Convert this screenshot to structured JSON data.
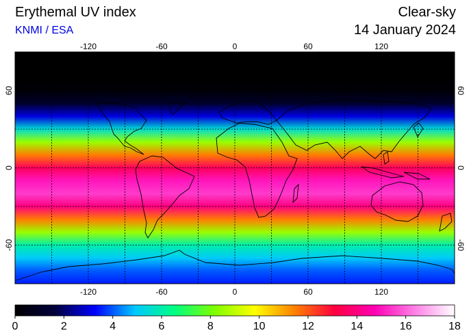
{
  "header": {
    "title": "Erythemal UV index",
    "credit": "KNMI / ESA",
    "conditions": "Clear-sky",
    "date": "14 January 2024"
  },
  "map": {
    "projection": "equirectangular",
    "lon_range": [
      -180,
      180
    ],
    "lat_range": [
      -90,
      90
    ],
    "lon_ticks": [
      -120,
      -60,
      0,
      60,
      120
    ],
    "lon_tick_labels": [
      "-120",
      "-60",
      "0",
      "60",
      "120"
    ],
    "lat_ticks": [
      60,
      0,
      -60
    ],
    "lat_tick_labels": [
      "60",
      "0",
      "-60"
    ],
    "gridline_style": "dotted",
    "grid_lon_step": 30,
    "grid_lat_step": 30
  },
  "colorbar": {
    "min": 0,
    "max": 18,
    "ticks": [
      0,
      2,
      4,
      6,
      8,
      10,
      12,
      14,
      16,
      18
    ],
    "tick_labels": [
      "0",
      "2",
      "4",
      "6",
      "8",
      "10",
      "12",
      "14",
      "16",
      "18"
    ],
    "colors": [
      "#000000",
      "#00003c",
      "#0000ff",
      "#00c8ff",
      "#00ff80",
      "#80ff00",
      "#ffff00",
      "#ff8000",
      "#ff0040",
      "#ff00b4",
      "#ff80e6",
      "#ffffff"
    ]
  },
  "uv_field": {
    "latitudes": [
      90,
      80,
      70,
      60,
      50,
      40,
      30,
      20,
      10,
      0,
      -10,
      -20,
      -30,
      -40,
      -50,
      -60,
      -70,
      -80,
      -90
    ],
    "uv_index": [
      0,
      0,
      0,
      0.2,
      1.2,
      3,
      5.5,
      8.5,
      11.5,
      13.5,
      15,
      15.5,
      14,
      11.5,
      8.5,
      6,
      5,
      4,
      3.5
    ]
  }
}
